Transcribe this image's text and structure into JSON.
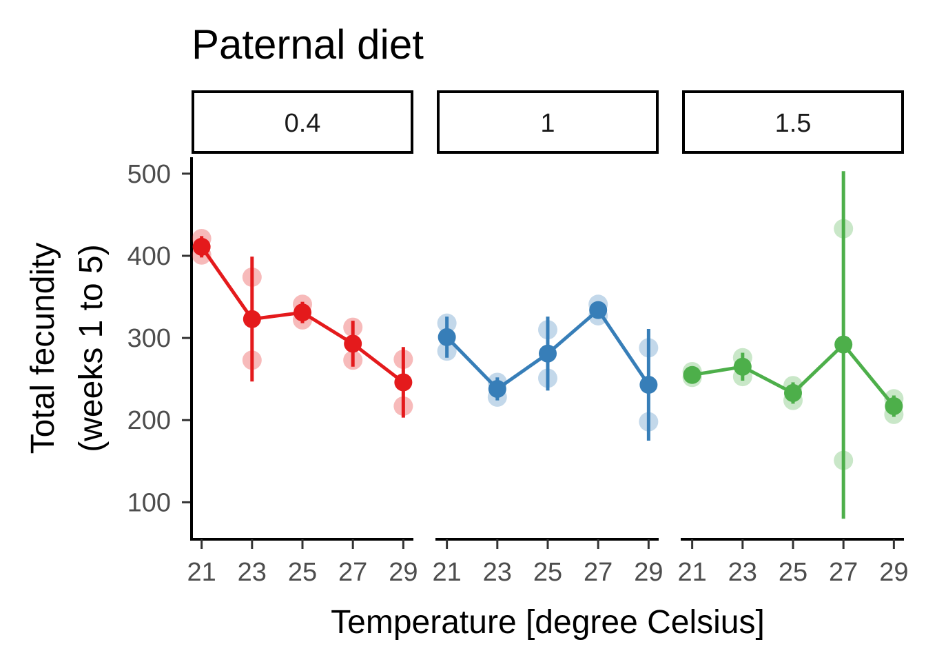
{
  "chart_data": {
    "type": "line",
    "title": "Paternal diet",
    "xlabel": "Temperature [degree Celsius]",
    "ylabel_line1": "Total fecundity",
    "ylabel_line2": "(weeks 1 to 5)",
    "ylim": [
      55,
      520
    ],
    "y_ticks": [
      100,
      200,
      300,
      400,
      500
    ],
    "x_ticks": [
      21,
      23,
      25,
      27,
      29
    ],
    "x_range": [
      20.6,
      29.4
    ],
    "grid": false,
    "legend": "none",
    "panels": [
      {
        "label": "0.4",
        "color": "#e41a1c",
        "points": [
          {
            "x": 21,
            "mean": 411,
            "lower": 398,
            "upper": 424,
            "reps": [
              421,
              401
            ]
          },
          {
            "x": 23,
            "mean": 323,
            "lower": 247,
            "upper": 399,
            "reps": [
              374,
              273
            ]
          },
          {
            "x": 25,
            "mean": 331,
            "lower": 318,
            "upper": 344,
            "reps": [
              341,
              322
            ]
          },
          {
            "x": 27,
            "mean": 293,
            "lower": 265,
            "upper": 321,
            "reps": [
              313,
              273
            ]
          },
          {
            "x": 29,
            "mean": 246,
            "lower": 203,
            "upper": 289,
            "reps": [
              274,
              217
            ]
          }
        ]
      },
      {
        "label": "1",
        "color": "#377eb8",
        "points": [
          {
            "x": 21,
            "mean": 301,
            "lower": 276,
            "upper": 326,
            "reps": [
              318,
              284
            ]
          },
          {
            "x": 23,
            "mean": 238,
            "lower": 224,
            "upper": 252,
            "reps": [
              246,
              228
            ]
          },
          {
            "x": 25,
            "mean": 281,
            "lower": 236,
            "upper": 326,
            "reps": [
              310,
              251
            ]
          },
          {
            "x": 27,
            "mean": 334,
            "lower": 324,
            "upper": 344,
            "reps": [
              341,
              327
            ]
          },
          {
            "x": 29,
            "mean": 243,
            "lower": 175,
            "upper": 311,
            "reps": [
              288,
              198
            ]
          }
        ]
      },
      {
        "label": "1.5",
        "color": "#4daf4a",
        "points": [
          {
            "x": 21,
            "mean": 255,
            "lower": 248,
            "upper": 262,
            "reps": [
              259,
              252
            ]
          },
          {
            "x": 23,
            "mean": 265,
            "lower": 248,
            "upper": 282,
            "reps": [
              276,
              253
            ]
          },
          {
            "x": 25,
            "mean": 233,
            "lower": 220,
            "upper": 246,
            "reps": [
              242,
              224
            ]
          },
          {
            "x": 27,
            "mean": 292,
            "lower": 80,
            "upper": 503,
            "reps": [
              433,
              151
            ]
          },
          {
            "x": 29,
            "mean": 217,
            "lower": 204,
            "upper": 230,
            "reps": [
              226,
              207
            ]
          }
        ]
      }
    ]
  }
}
